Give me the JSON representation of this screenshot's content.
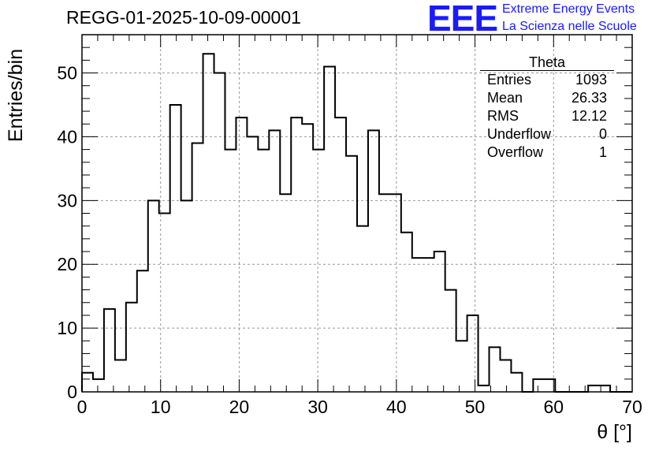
{
  "header": {
    "run_title": "REGG-01-2025-10-09-00001",
    "logo_text": "EEE",
    "logo_line1": "Extreme Energy Events",
    "logo_line2": "La Scienza nelle Scuole"
  },
  "stats_box": {
    "title": "Theta",
    "rows": [
      {
        "label": "Entries",
        "value": "1093"
      },
      {
        "label": "Mean",
        "value": "26.33"
      },
      {
        "label": "RMS",
        "value": "12.12"
      },
      {
        "label": "Underflow",
        "value": "0"
      },
      {
        "label": "Overflow",
        "value": "1"
      }
    ]
  },
  "chart_data": {
    "type": "histogram",
    "xlabel": "θ [°]",
    "ylabel": "Entries/bin",
    "xlim": [
      0,
      70
    ],
    "ylim": [
      0,
      56
    ],
    "xticks": [
      0,
      10,
      20,
      30,
      40,
      50,
      60,
      70
    ],
    "yticks": [
      0,
      10,
      20,
      30,
      40,
      50
    ],
    "grid": true,
    "bin_width": 1.4,
    "bin_start": 0,
    "values": [
      3,
      2,
      13,
      5,
      14,
      19,
      30,
      28,
      45,
      30,
      39,
      53,
      50,
      38,
      43,
      40,
      38,
      41,
      31,
      43,
      42,
      38,
      51,
      43,
      37,
      26,
      41,
      31,
      31,
      25,
      21,
      21,
      22,
      16,
      8,
      12,
      1,
      7,
      5,
      3,
      0,
      2,
      2,
      0,
      0,
      0,
      1,
      1,
      0,
      0
    ],
    "colors": {
      "line": "#000000",
      "grid": "#999999",
      "logo": "#1a1aff"
    }
  }
}
